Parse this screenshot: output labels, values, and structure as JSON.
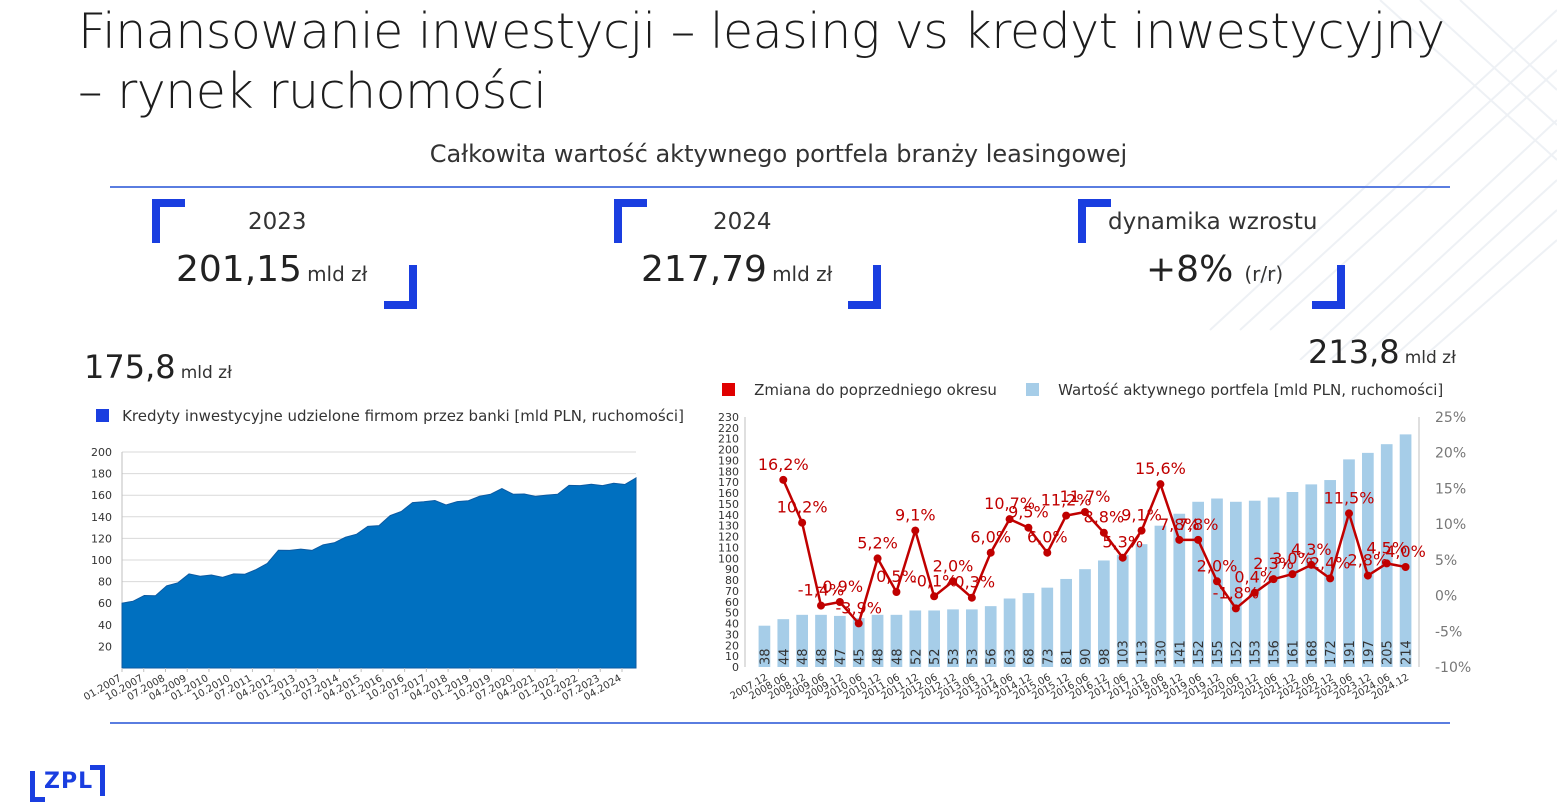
{
  "title_line1": "Finansowanie inwestycji – leasing vs kredyt inwestycyjny",
  "title_line2": "– rynek ruchomości",
  "subtitle": "Całkowita wartość aktywnego portfela branży leasingowej",
  "kpis": [
    {
      "label": "2023",
      "value": "201,15",
      "unit": "mld zł"
    },
    {
      "label": "2024",
      "value": "217,79",
      "unit": "mld zł"
    },
    {
      "label": "dynamika wzrostu",
      "value": "+8%",
      "unit": "(r/r)"
    }
  ],
  "left_big_value": "175,8",
  "left_big_unit": "mld zł",
  "right_big_value": "213,8",
  "right_big_unit": "mld zł",
  "logo_text": "ZPL",
  "colors": {
    "accent": "#1a3ee0",
    "area": "#0070c0",
    "bars": "#a6cde8",
    "line": "#c00000"
  },
  "chart_data": [
    {
      "type": "area",
      "legend": "Kredyty inwestycyjne udzielone firmom przez banki [mld PLN, ruchomości]",
      "ylim": [
        0,
        200
      ],
      "yticks": [
        20,
        40,
        60,
        80,
        100,
        120,
        140,
        160,
        180,
        200
      ],
      "x_tick_labels": [
        "01.2007",
        "10.2007",
        "07.2008",
        "04.2009",
        "01.2010",
        "10.2010",
        "07.2011",
        "04.2012",
        "01.2013",
        "10.2013",
        "07.2014",
        "04.2015",
        "01.2016",
        "10.2016",
        "07.2017",
        "04.2018",
        "01.2019",
        "10.2019",
        "07.2020",
        "04.2021",
        "01.2022",
        "10.2022",
        "07.2023",
        "04.2024"
      ],
      "values_quarterly": [
        60,
        63,
        66,
        68,
        75,
        80,
        86,
        86,
        85,
        85,
        86,
        88,
        90,
        98,
        108,
        110,
        109,
        110,
        113,
        117,
        120,
        125,
        130,
        133,
        140,
        146,
        152,
        155,
        154,
        152,
        153,
        156,
        158,
        162,
        165,
        162,
        160,
        160,
        159,
        162,
        168,
        170,
        169,
        170,
        170,
        171,
        176
      ]
    },
    {
      "type": "bar+line",
      "legend_line": "Zmiana do poprzedniego okresu",
      "legend_bars": "Wartość aktywnego portfela [mld PLN, ruchomości]",
      "categories": [
        "2007.12",
        "2008.06",
        "2008.12",
        "2009.06",
        "2009.12",
        "2010.06",
        "2010.12",
        "2011.06",
        "2011.12",
        "2012.06",
        "2012.12",
        "2013.06",
        "2013.12",
        "2014.06",
        "2014.12",
        "2015.06",
        "2015.12",
        "2016.06",
        "2016.12",
        "2017.06",
        "2017.12",
        "2018.06",
        "2018.12",
        "2019.06",
        "2019.12",
        "2020.06",
        "2020.12",
        "2021.06",
        "2021.12",
        "2022.06",
        "2022.12",
        "2023.06",
        "2023.12",
        "2024.06",
        "2024.12"
      ],
      "bar_values": [
        38,
        44,
        48,
        48,
        47,
        45,
        48,
        48,
        52,
        52,
        53,
        53,
        56,
        63,
        68,
        73,
        81,
        90,
        98,
        103,
        113,
        130,
        141,
        152,
        155,
        152,
        153,
        156,
        161,
        168,
        172,
        191,
        197,
        205,
        214
      ],
      "bar_labels": [
        "38",
        "44",
        "48",
        "48",
        "47",
        "45",
        "48",
        "48",
        "52",
        "52",
        "53",
        "53",
        "56",
        "63",
        "68",
        "73",
        "81",
        "90",
        "98",
        "103",
        "113",
        "130",
        "141",
        "152",
        "155",
        "152",
        "153",
        "156",
        "161",
        "168",
        "172",
        "191",
        "197",
        "205",
        "214"
      ],
      "line_values": [
        null,
        16.2,
        10.2,
        -1.4,
        -0.9,
        -3.9,
        5.2,
        0.5,
        9.1,
        -0.1,
        2.0,
        -0.3,
        6.0,
        10.7,
        9.5,
        6.0,
        11.2,
        11.7,
        8.8,
        5.3,
        9.1,
        15.6,
        7.8,
        7.8,
        2.0,
        -1.8,
        0.4,
        2.3,
        3.0,
        4.3,
        2.4,
        11.5,
        2.8,
        4.5,
        4.0
      ],
      "line_labels": [
        "",
        "16,2%",
        "10,2%",
        "-1,4%",
        "-0,9%",
        "-3,9%",
        "5,2%",
        "0,5%",
        "9,1%",
        "-0,1%",
        "2,0%",
        "-0,3%",
        "6,0%",
        "10,7%",
        "9,5%",
        "6,0%",
        "11,2%",
        "11,7%",
        "8,8%",
        "5,3%",
        "9,1%",
        "15,6%",
        "7,8%",
        "7,8%",
        "2,0%",
        "-1,8%",
        "0,4%",
        "2,3%",
        "3,0%",
        "4,3%",
        "2,4%",
        "11,5%",
        "2,8%",
        "4,5%",
        "4,0%"
      ],
      "y_left_ticks": [
        0,
        10,
        20,
        30,
        40,
        50,
        60,
        70,
        80,
        90,
        100,
        110,
        120,
        130,
        140,
        150,
        160,
        170,
        180,
        190,
        200,
        210,
        220,
        230
      ],
      "y_left_lim": [
        0,
        230
      ],
      "y_right_ticks": [
        "25%",
        "20%",
        "15%",
        "10%",
        "5%",
        "0%",
        "-5%",
        "-10%"
      ],
      "y_right_lim": [
        -10,
        25
      ]
    }
  ]
}
